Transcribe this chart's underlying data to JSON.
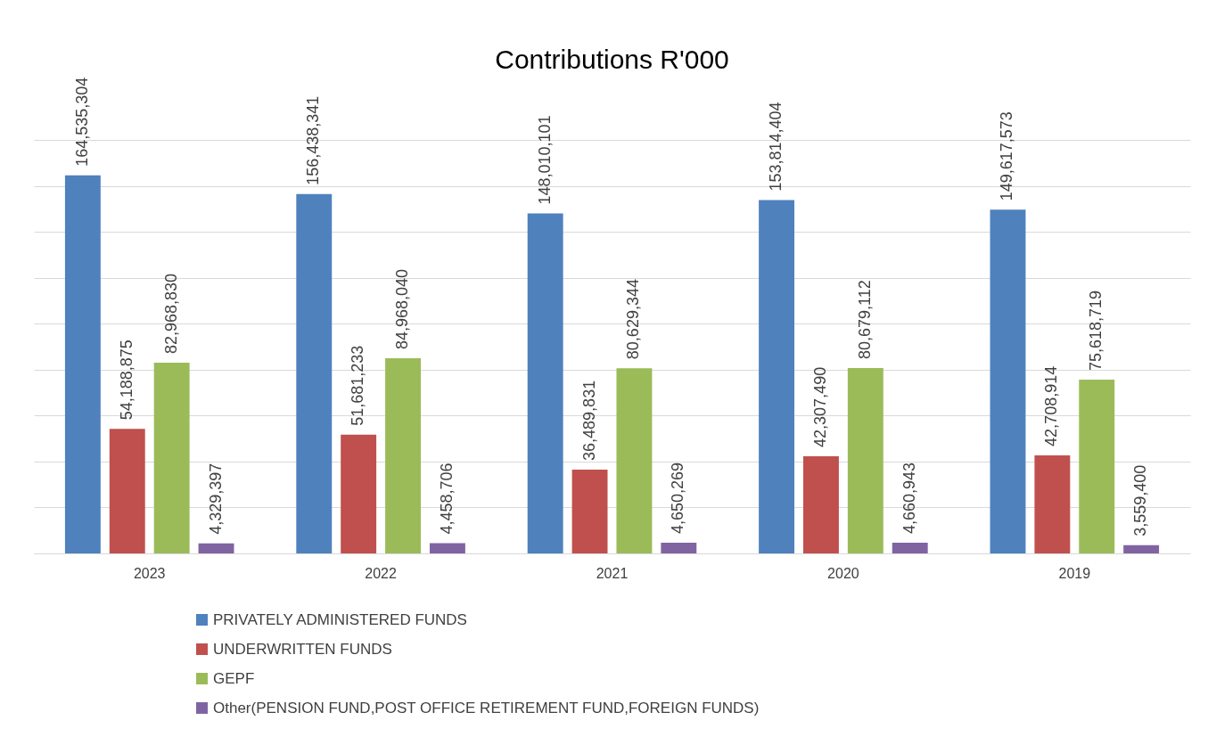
{
  "chart_data": {
    "type": "bar",
    "title": "Contributions R'000",
    "categories": [
      "2023",
      "2022",
      "2021",
      "2020",
      "2019"
    ],
    "series": [
      {
        "name": "PRIVATELY ADMINISTERED FUNDS",
        "color": "#4f81bd",
        "values": [
          164535304,
          156438341,
          148010101,
          153814404,
          149617573
        ],
        "value_labels": [
          "164,535,304",
          "156,438,341",
          "148,010,101",
          "153,814,404",
          "149,617,573"
        ]
      },
      {
        "name": "UNDERWRITTEN FUNDS",
        "color": "#c0504d",
        "values": [
          54188875,
          51681233,
          36489831,
          42307490,
          42708914
        ],
        "value_labels": [
          "54,188,875",
          "51,681,233",
          "36,489,831",
          "42,307,490",
          "42,708,914"
        ]
      },
      {
        "name": "GEPF",
        "color": "#9bbb59",
        "values": [
          82968830,
          84968040,
          80629344,
          80679112,
          75618719
        ],
        "value_labels": [
          "82,968,830",
          "84,968,040",
          "80,629,344",
          "80,679,112",
          "75,618,719"
        ]
      },
      {
        "name": "Other(PENSION FUND,POST OFFICE RETIREMENT FUND,FOREIGN FUNDS)",
        "color": "#8064a2",
        "values": [
          4329397,
          4458706,
          4650269,
          4660943,
          3559400
        ],
        "value_labels": [
          "4,329,397",
          "4,458,706",
          "4,650,269",
          "4,660,943",
          "3,559,400"
        ]
      }
    ],
    "tick_labels": "x",
    "grid": "y",
    "legend": "bottom"
  }
}
